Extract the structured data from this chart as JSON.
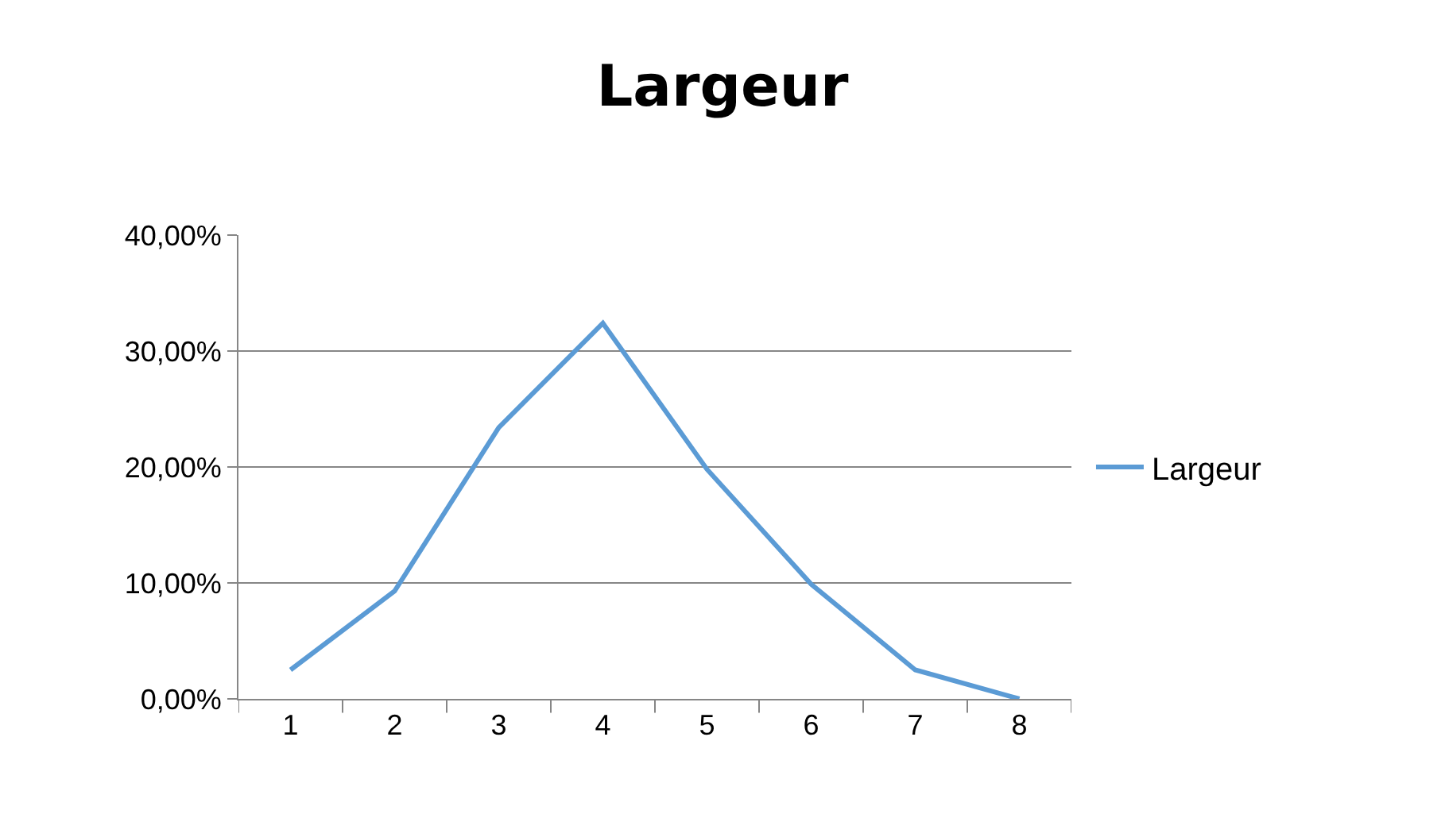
{
  "chart_data": {
    "type": "line",
    "title": "Largeur",
    "categories": [
      "1",
      "2",
      "3",
      "4",
      "5",
      "6",
      "7",
      "8"
    ],
    "series": [
      {
        "name": "Largeur",
        "color": "#5b9bd5",
        "values": [
          2.5,
          9.3,
          23.4,
          32.4,
          19.8,
          9.9,
          2.5,
          0
        ]
      }
    ],
    "ylim": [
      0,
      40
    ],
    "yticks": [
      {
        "value": 0,
        "label": "0,00%"
      },
      {
        "value": 10,
        "label": "10,00%"
      },
      {
        "value": 20,
        "label": "20,00%"
      },
      {
        "value": 30,
        "label": "30,00%"
      },
      {
        "value": 40,
        "label": "40,00%"
      }
    ],
    "grid": "y",
    "legend": "right",
    "marker": "none",
    "line_style": "solid"
  }
}
